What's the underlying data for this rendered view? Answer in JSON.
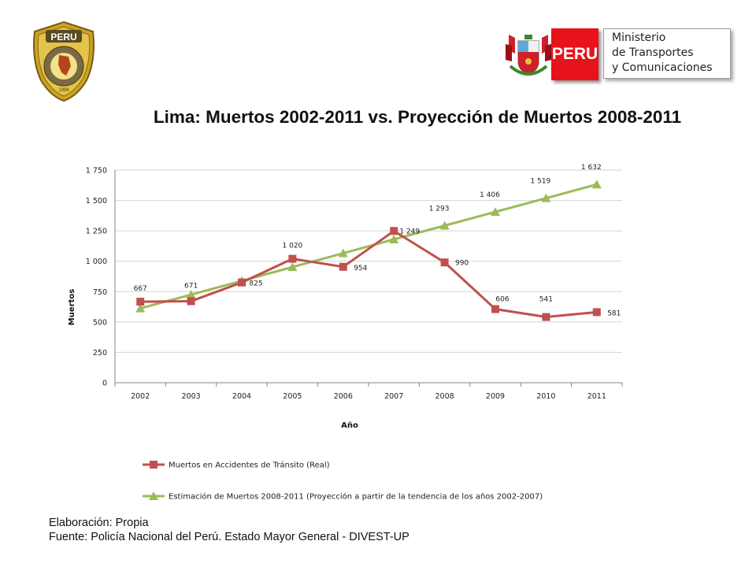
{
  "header": {
    "badge_text": "PERU",
    "ministry_lines": [
      "Ministerio",
      "de Transportes",
      "y Comunicaciones"
    ],
    "left_logo": {
      "top_text": "PERU",
      "ring_text": "CONSEJO NACIONAL DE SEGURIDAD VIAL",
      "year": "1996"
    }
  },
  "title": "Lima: Muertos 2002-2011 vs. Proyección de Muertos 2008-2011",
  "footer": {
    "line1": "Elaboración: Propia",
    "line2": "Fuente: Policía Nacional del Perú. Estado Mayor General - DIVEST-UP"
  },
  "colors": {
    "real": "#c0504d",
    "projection": "#9bbb59",
    "badge": "#e8121a"
  },
  "chart_data": {
    "type": "line",
    "categories": [
      "2002",
      "2003",
      "2004",
      "2005",
      "2006",
      "2007",
      "2008",
      "2009",
      "2010",
      "2011"
    ],
    "xlabel": "Año",
    "ylabel": "Muertos",
    "ylim": [
      0,
      1750
    ],
    "yticks": [
      0,
      250,
      500,
      750,
      1000,
      1250,
      1500,
      1750
    ],
    "ytick_labels": [
      "0",
      "250",
      "500",
      "750",
      "1 000",
      "1 250",
      "1 500",
      "1 750"
    ],
    "grid": true,
    "legend_position": "bottom",
    "series": [
      {
        "name": "Muertos en Accidentes de Tránsito (Real)",
        "marker": "square",
        "values": [
          667,
          671,
          825,
          1020,
          954,
          1249,
          990,
          606,
          541,
          581
        ],
        "labels": [
          "667",
          "671",
          "825",
          "1 020",
          "954",
          "1 249",
          "990",
          "606",
          "541",
          "581"
        ]
      },
      {
        "name": "Estimación de Muertos 2008-2011 (Proyección a partir de la tendencia de los años 2002-2007)",
        "marker": "triangle",
        "values": [
          612,
          725,
          838,
          952,
          1066,
          1180,
          1293,
          1406,
          1519,
          1632
        ],
        "labels": [
          "",
          "",
          "",
          "",
          "",
          "",
          "1 293",
          "1 406",
          "1 519",
          "1 632"
        ]
      }
    ]
  }
}
